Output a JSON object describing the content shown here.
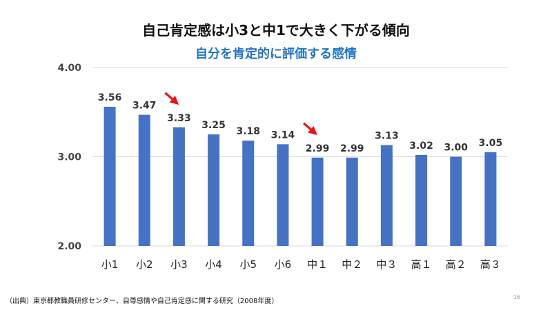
{
  "slide": {
    "title": "自己肯定感は小3と中1で大きく下がる傾向",
    "source": "（出典）東京都教職員研修センター、自尊感情や自己肯定感に関する研究（2008年度）",
    "page_number": "16"
  },
  "chart_data": {
    "type": "bar",
    "title": "自分を肯定的に評価する感情",
    "categories": [
      "小1",
      "小2",
      "小3",
      "小4",
      "小5",
      "小6",
      "中１",
      "中２",
      "中３",
      "高１",
      "高２",
      "高３"
    ],
    "values": [
      3.56,
      3.47,
      3.33,
      3.25,
      3.18,
      3.14,
      2.99,
      2.99,
      3.13,
      3.02,
      3.0,
      3.05
    ],
    "data_labels": [
      "3.56",
      "3.47",
      "3.33",
      "3.25",
      "3.18",
      "3.14",
      "2.99",
      "2.99",
      "3.13",
      "3.02",
      "3.00",
      "3.05"
    ],
    "ylim": [
      2.0,
      4.0
    ],
    "yticks": [
      2.0,
      3.0,
      4.0
    ],
    "ytick_labels": [
      "2.00",
      "3.00",
      "4.00"
    ],
    "xlabel": "",
    "ylabel": "",
    "grid": true,
    "legend": "none",
    "bar_color": "#4472c4",
    "grid_color": "#d9d9d9",
    "annotations": [
      {
        "type": "arrow",
        "points_to": "小3",
        "color": "#ee1111"
      },
      {
        "type": "arrow",
        "points_to": "中１",
        "color": "#ee1111"
      }
    ]
  }
}
